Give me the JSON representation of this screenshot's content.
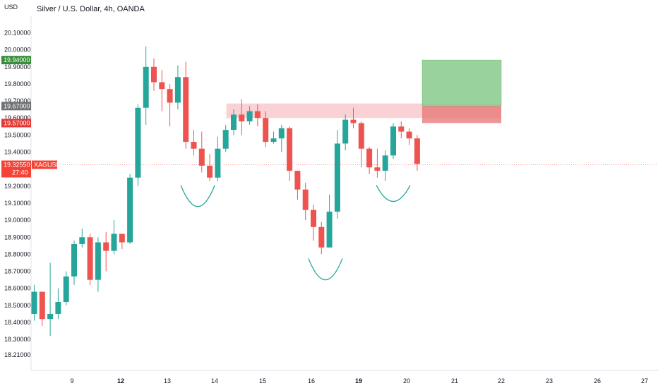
{
  "header": {
    "title": "Silver / U.S. Dollar, 4h, OANDA",
    "unit": "USD"
  },
  "colors": {
    "up": "#26a69a",
    "down": "#ef5350",
    "marker": "#26a69a",
    "resistance": "#f7b9bd",
    "profit": "#81c784",
    "loss": "#e57373",
    "badge_green": "#388e3c",
    "badge_grey": "#6e7175",
    "badge_red": "#e53935",
    "badge_current": "#f44336"
  },
  "chart_data": {
    "type": "candlestick",
    "symbol": "XAGUSD",
    "ylim": [
      18.16,
      20.16
    ],
    "y_ticks": [
      "20.10000",
      "20.00000",
      "19.90000",
      "19.80000",
      "19.70000",
      "19.60000",
      "19.50000",
      "19.40000",
      "19.30000",
      "19.20000",
      "19.10000",
      "19.00000",
      "18.90000",
      "18.80000",
      "18.70000",
      "18.60000",
      "18.50000",
      "18.40000",
      "18.30000",
      "18.21000"
    ],
    "x_ticks": [
      {
        "label": "9",
        "bold": false
      },
      {
        "label": "12",
        "bold": true
      },
      {
        "label": "13",
        "bold": false
      },
      {
        "label": "14",
        "bold": false
      },
      {
        "label": "15",
        "bold": false
      },
      {
        "label": "16",
        "bold": false
      },
      {
        "label": "19",
        "bold": true
      },
      {
        "label": "20",
        "bold": false
      },
      {
        "label": "21",
        "bold": false
      },
      {
        "label": "22",
        "bold": false
      },
      {
        "label": "23",
        "bold": false
      },
      {
        "label": "26",
        "bold": false
      },
      {
        "label": "27",
        "bold": false
      }
    ],
    "candles": [
      [
        18.45,
        18.58,
        18.62,
        18.41
      ],
      [
        18.58,
        18.42,
        18.58,
        18.38
      ],
      [
        18.42,
        18.45,
        18.75,
        18.32
      ],
      [
        18.45,
        18.52,
        18.6,
        18.42
      ],
      [
        18.52,
        18.67,
        18.7,
        18.5
      ],
      [
        18.67,
        18.86,
        18.88,
        18.62
      ],
      [
        18.86,
        18.9,
        18.95,
        18.84
      ],
      [
        18.9,
        18.65,
        18.92,
        18.62
      ],
      [
        18.65,
        18.87,
        18.9,
        18.58
      ],
      [
        18.87,
        18.82,
        18.93,
        18.7
      ],
      [
        18.82,
        18.92,
        19.0,
        18.8
      ],
      [
        18.92,
        18.87,
        18.92,
        18.83
      ],
      [
        18.87,
        19.25,
        19.27,
        18.86
      ],
      [
        19.25,
        19.66,
        19.68,
        19.2
      ],
      [
        19.66,
        19.9,
        20.02,
        19.56
      ],
      [
        19.9,
        19.81,
        19.95,
        19.76
      ],
      [
        19.81,
        19.77,
        19.88,
        19.64
      ],
      [
        19.77,
        19.69,
        19.8,
        19.55
      ],
      [
        19.69,
        19.84,
        19.91,
        19.65
      ],
      [
        19.84,
        19.46,
        19.93,
        19.42
      ],
      [
        19.46,
        19.42,
        19.53,
        19.38
      ],
      [
        19.42,
        19.32,
        19.52,
        19.28
      ],
      [
        19.32,
        19.25,
        19.39,
        19.23
      ],
      [
        19.25,
        19.42,
        19.49,
        19.23
      ],
      [
        19.42,
        19.53,
        19.56,
        19.4
      ],
      [
        19.53,
        19.62,
        19.65,
        19.5
      ],
      [
        19.62,
        19.58,
        19.71,
        19.5
      ],
      [
        19.58,
        19.64,
        19.67,
        19.56
      ],
      [
        19.64,
        19.6,
        19.68,
        19.55
      ],
      [
        19.6,
        19.46,
        19.64,
        19.43
      ],
      [
        19.46,
        19.48,
        19.52,
        19.45
      ],
      [
        19.48,
        19.54,
        19.56,
        19.4
      ],
      [
        19.54,
        19.29,
        19.55,
        19.23
      ],
      [
        19.29,
        19.18,
        19.29,
        19.12
      ],
      [
        19.18,
        19.06,
        19.22,
        19.0
      ],
      [
        19.06,
        18.96,
        19.09,
        18.88
      ],
      [
        18.96,
        18.84,
        18.99,
        18.8
      ],
      [
        18.84,
        19.05,
        19.15,
        18.84
      ],
      [
        19.05,
        19.45,
        19.53,
        19.01
      ],
      [
        19.45,
        19.59,
        19.62,
        19.41
      ],
      [
        19.59,
        19.57,
        19.66,
        19.54
      ],
      [
        19.57,
        19.42,
        19.58,
        19.31
      ],
      [
        19.42,
        19.31,
        19.43,
        19.27
      ],
      [
        19.31,
        19.29,
        19.42,
        19.25
      ],
      [
        19.29,
        19.38,
        19.41,
        19.23
      ],
      [
        19.38,
        19.55,
        19.57,
        19.36
      ],
      [
        19.55,
        19.52,
        19.58,
        19.48
      ],
      [
        19.52,
        19.48,
        19.54,
        19.44
      ],
      [
        19.48,
        19.33,
        19.5,
        19.29
      ]
    ],
    "resistance_zone": [
      19.6,
      19.685
    ],
    "trade": {
      "entry": 19.67,
      "target": 19.94,
      "stop": 19.57
    },
    "markers": [
      {
        "center": 20.5,
        "depth": 0.15
      },
      {
        "center": 36.5,
        "depth": 0.15
      },
      {
        "center": 45.0,
        "depth": 0.12
      }
    ],
    "price_badges": [
      {
        "value": 19.94,
        "label": "19.94000",
        "color": "badge_green"
      },
      {
        "value": 19.67,
        "label": "19.67000",
        "color": "badge_grey"
      },
      {
        "value": 19.57,
        "label": "19.57000",
        "color": "badge_red"
      }
    ],
    "current_price": {
      "value": 19.3255,
      "label": "19.32550",
      "symbol": "XAGUSD",
      "countdown": "27:40"
    }
  }
}
